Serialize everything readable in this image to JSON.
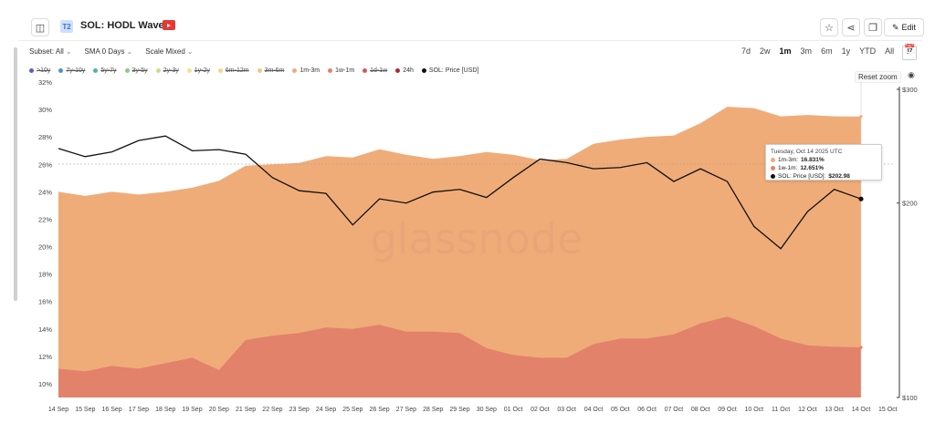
{
  "header": {
    "badge": "T2",
    "title": "SOL: HODL Waves",
    "edit_label": "Edit"
  },
  "controls": {
    "subset": "Subset: All",
    "sma": "SMA 0 Days",
    "scale": "Scale Mixed"
  },
  "ranges": [
    {
      "label": "7d",
      "active": false
    },
    {
      "label": "2w",
      "active": false
    },
    {
      "label": "1m",
      "active": true
    },
    {
      "label": "3m",
      "active": false
    },
    {
      "label": "6m",
      "active": false
    },
    {
      "label": "1y",
      "active": false
    },
    {
      "label": "YTD",
      "active": false
    },
    {
      "label": "All",
      "active": false
    }
  ],
  "reset_zoom": "Reset zoom",
  "watermark": "glassnode",
  "legend": [
    {
      "label": ">10y",
      "color": "#5b5fc7",
      "off": true
    },
    {
      "label": "7y-10y",
      "color": "#4f8fd6",
      "off": true
    },
    {
      "label": "5y-7y",
      "color": "#4fb3a8",
      "off": true
    },
    {
      "label": "3y-5y",
      "color": "#8bc98b",
      "off": true
    },
    {
      "label": "2y-3y",
      "color": "#c7dd8a",
      "off": true
    },
    {
      "label": "1y-2y",
      "color": "#ede58a",
      "off": true
    },
    {
      "label": "6m-12m",
      "color": "#f5d58a",
      "off": true
    },
    {
      "label": "3m-6m",
      "color": "#f6c489",
      "off": true
    },
    {
      "label": "1m-3m",
      "color": "#f0ac78",
      "off": false
    },
    {
      "label": "1w-1m",
      "color": "#e2826b",
      "off": false
    },
    {
      "label": "1d-1w",
      "color": "#d0595a",
      "off": true
    },
    {
      "label": "24h",
      "color": "#b3243a",
      "off": false
    },
    {
      "label": "SOL: Price [USD]",
      "color": "#111111",
      "off": false
    }
  ],
  "tooltip": {
    "date": "Tuesday, Oct 14 2025 UTC",
    "row1_label": "1m-3m:",
    "row1_value": "16.831%",
    "row2_label": "1w-1m:",
    "row2_value": "12.651%",
    "row3_label": "SOL: Price [USD]:",
    "row3_value": "$202.98"
  },
  "chart_data": {
    "type": "area",
    "title": "SOL: HODL Waves",
    "x": [
      "14 Sep",
      "15 Sep",
      "16 Sep",
      "17 Sep",
      "18 Sep",
      "19 Sep",
      "20 Sep",
      "21 Sep",
      "22 Sep",
      "23 Sep",
      "24 Sep",
      "25 Sep",
      "26 Sep",
      "27 Sep",
      "28 Sep",
      "29 Sep",
      "30 Sep",
      "01 Oct",
      "02 Oct",
      "03 Oct",
      "04 Oct",
      "05 Oct",
      "06 Oct",
      "07 Oct",
      "08 Oct",
      "09 Oct",
      "10 Oct",
      "11 Oct",
      "12 Oct",
      "13 Oct",
      "14 Oct"
    ],
    "x_ticks": [
      "14 Sep",
      "15 Sep",
      "16 Sep",
      "17 Sep",
      "18 Sep",
      "19 Sep",
      "20 Sep",
      "21 Sep",
      "22 Sep",
      "23 Sep",
      "24 Sep",
      "25 Sep",
      "26 Sep",
      "27 Sep",
      "28 Sep",
      "29 Sep",
      "30 Sep",
      "01 Oct",
      "02 Oct",
      "03 Oct",
      "04 Oct",
      "05 Oct",
      "06 Oct",
      "07 Oct",
      "08 Oct",
      "09 Oct",
      "10 Oct",
      "11 Oct",
      "12 Oct",
      "13 Oct",
      "14 Oct",
      "15 Oct"
    ],
    "series": [
      {
        "name": "1w-1m",
        "color": "#e2826b",
        "values": [
          11.1,
          10.9,
          11.3,
          11.1,
          11.5,
          11.9,
          11.0,
          13.2,
          13.5,
          13.7,
          14.1,
          14.0,
          14.3,
          13.8,
          13.8,
          13.7,
          12.6,
          12.1,
          11.9,
          11.9,
          12.9,
          13.3,
          13.3,
          13.6,
          14.4,
          14.9,
          14.2,
          13.3,
          12.8,
          12.7,
          12.651
        ]
      },
      {
        "name": "1m-3m",
        "color": "#f0ac78",
        "values": [
          12.9,
          12.8,
          12.7,
          12.7,
          12.5,
          12.4,
          13.8,
          12.7,
          12.5,
          12.4,
          12.5,
          12.5,
          12.8,
          12.9,
          12.6,
          12.9,
          14.3,
          14.6,
          14.4,
          14.5,
          14.6,
          14.5,
          14.7,
          14.5,
          14.6,
          15.3,
          15.9,
          16.2,
          16.8,
          16.8,
          16.831
        ]
      },
      {
        "name": "SOL: Price [USD]",
        "color": "#111111",
        "values": [
          243,
          236,
          240,
          250,
          254,
          241,
          242,
          238,
          219,
          209,
          207,
          185,
          203,
          200,
          208,
          210,
          204,
          219,
          234,
          231,
          226,
          227,
          231,
          216,
          226,
          216,
          184,
          170,
          194,
          210,
          202.98
        ]
      }
    ],
    "y_left": {
      "ticks": [
        "10%",
        "12%",
        "14%",
        "16%",
        "18%",
        "20%",
        "22%",
        "24%",
        "26%",
        "28%",
        "30%",
        "32%"
      ],
      "range": [
        9,
        32
      ]
    },
    "y_right": {
      "ticks": [
        "$100",
        "$200",
        "$300"
      ],
      "scale": "log",
      "range": [
        100,
        300
      ]
    },
    "legend_position": "top-left",
    "grid": false
  }
}
